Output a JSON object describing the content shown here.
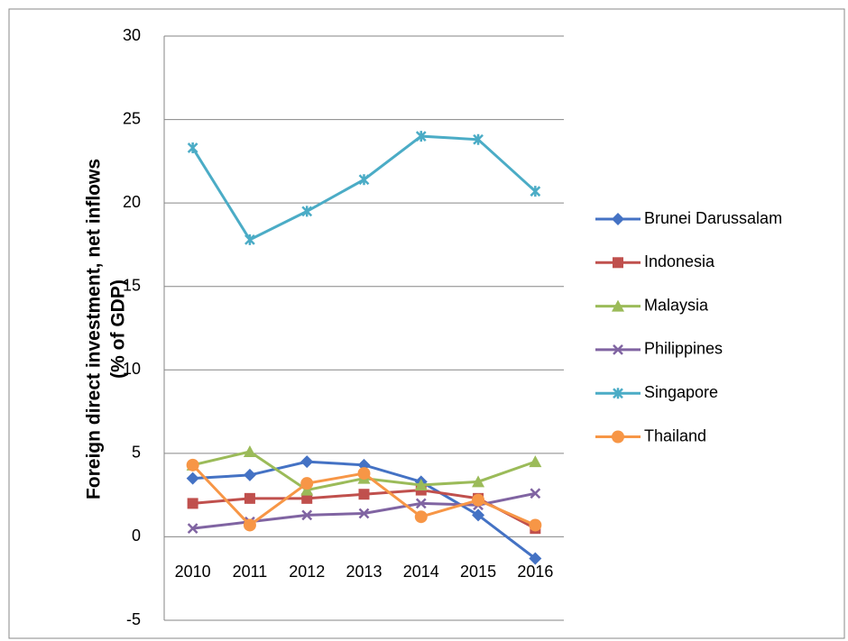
{
  "chart_data": {
    "type": "line",
    "ylabel": [
      "Foreign direct investment, net inflows",
      "(% of GDP)"
    ],
    "categories": [
      "2010",
      "2011",
      "2012",
      "2013",
      "2014",
      "2015",
      "2016"
    ],
    "series": [
      {
        "name": "Brunei Darussalam",
        "color": "#4472c4",
        "marker": "diamond",
        "values": [
          3.5,
          3.7,
          4.5,
          4.3,
          3.3,
          1.3,
          -1.3
        ]
      },
      {
        "name": "Indonesia",
        "color": "#c0504d",
        "marker": "square",
        "values": [
          2.0,
          2.3,
          2.3,
          2.55,
          2.8,
          2.3,
          0.5
        ]
      },
      {
        "name": "Malaysia",
        "color": "#9bbb59",
        "marker": "triangle",
        "values": [
          4.3,
          5.1,
          2.8,
          3.5,
          3.1,
          3.3,
          4.5
        ]
      },
      {
        "name": "Philippines",
        "color": "#8064a2",
        "marker": "x",
        "values": [
          0.5,
          0.9,
          1.3,
          1.4,
          2.0,
          1.9,
          2.6
        ]
      },
      {
        "name": "Singapore",
        "color": "#4bacc6",
        "marker": "star",
        "values": [
          23.3,
          17.8,
          19.5,
          21.4,
          24.0,
          23.8,
          20.7
        ]
      },
      {
        "name": "Thailand",
        "color": "#f79646",
        "marker": "circle",
        "values": [
          4.3,
          0.7,
          3.2,
          3.8,
          1.2,
          2.2,
          0.7
        ]
      }
    ],
    "ylim": [
      -5,
      30
    ],
    "yticks": [
      -5,
      0,
      5,
      10,
      15,
      20,
      25,
      30
    ],
    "grid": true,
    "legend": "right"
  }
}
